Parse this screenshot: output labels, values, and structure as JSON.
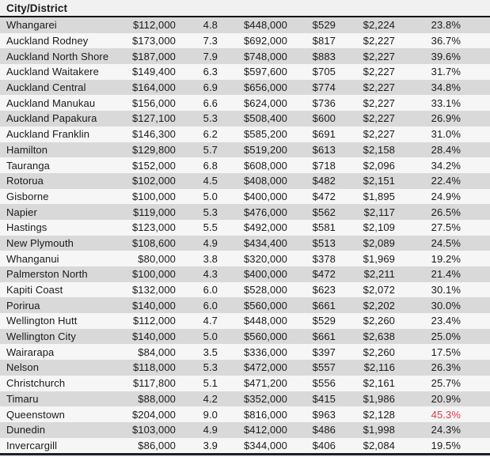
{
  "header": {
    "title": "City/District"
  },
  "chart_data": {
    "type": "table",
    "columns": [
      "City/District",
      "",
      "",
      "",
      "",
      "",
      ""
    ],
    "rows": [
      [
        "Whangarei",
        "$112,000",
        "4.8",
        "$448,000",
        "$529",
        "$2,224",
        "23.8%"
      ],
      [
        "Auckland Rodney",
        "$173,000",
        "7.3",
        "$692,000",
        "$817",
        "$2,227",
        "36.7%"
      ],
      [
        "Auckland North Shore",
        "$187,000",
        "7.9",
        "$748,000",
        "$883",
        "$2,227",
        "39.6%"
      ],
      [
        "Auckland Waitakere",
        "$149,400",
        "6.3",
        "$597,600",
        "$705",
        "$2,227",
        "31.7%"
      ],
      [
        "Auckland Central",
        "$164,000",
        "6.9",
        "$656,000",
        "$774",
        "$2,227",
        "34.8%"
      ],
      [
        "Auckland Manukau",
        "$156,000",
        "6.6",
        "$624,000",
        "$736",
        "$2,227",
        "33.1%"
      ],
      [
        "Auckland Papakura",
        "$127,100",
        "5.3",
        "$508,400",
        "$600",
        "$2,227",
        "26.9%"
      ],
      [
        "Auckland Franklin",
        "$146,300",
        "6.2",
        "$585,200",
        "$691",
        "$2,227",
        "31.0%"
      ],
      [
        "Hamilton",
        "$129,800",
        "5.7",
        "$519,200",
        "$613",
        "$2,158",
        "28.4%"
      ],
      [
        "Tauranga",
        "$152,000",
        "6.8",
        "$608,000",
        "$718",
        "$2,096",
        "34.2%"
      ],
      [
        "Rotorua",
        "$102,000",
        "4.5",
        "$408,000",
        "$482",
        "$2,151",
        "22.4%"
      ],
      [
        "Gisborne",
        "$100,000",
        "5.0",
        "$400,000",
        "$472",
        "$1,895",
        "24.9%"
      ],
      [
        "Napier",
        "$119,000",
        "5.3",
        "$476,000",
        "$562",
        "$2,117",
        "26.5%"
      ],
      [
        "Hastings",
        "$123,000",
        "5.5",
        "$492,000",
        "$581",
        "$2,109",
        "27.5%"
      ],
      [
        "New Plymouth",
        "$108,600",
        "4.9",
        "$434,400",
        "$513",
        "$2,089",
        "24.5%"
      ],
      [
        "Whanganui",
        "$80,000",
        "3.8",
        "$320,000",
        "$378",
        "$1,969",
        "19.2%"
      ],
      [
        "Palmerston North",
        "$100,000",
        "4.3",
        "$400,000",
        "$472",
        "$2,211",
        "21.4%"
      ],
      [
        "Kapiti Coast",
        "$132,000",
        "6.0",
        "$528,000",
        "$623",
        "$2,072",
        "30.1%"
      ],
      [
        "Porirua",
        "$140,000",
        "6.0",
        "$560,000",
        "$661",
        "$2,202",
        "30.0%"
      ],
      [
        "Wellington Hutt",
        "$112,000",
        "4.7",
        "$448,000",
        "$529",
        "$2,260",
        "23.4%"
      ],
      [
        "Wellington City",
        "$140,000",
        "5.0",
        "$560,000",
        "$661",
        "$2,638",
        "25.0%"
      ],
      [
        "Wairarapa",
        "$84,000",
        "3.5",
        "$336,000",
        "$397",
        "$2,260",
        "17.5%"
      ],
      [
        "Nelson",
        "$118,000",
        "5.3",
        "$472,000",
        "$557",
        "$2,116",
        "26.3%"
      ],
      [
        "Christchurch",
        "$117,800",
        "5.1",
        "$471,200",
        "$556",
        "$2,161",
        "25.7%"
      ],
      [
        "Timaru",
        "$88,000",
        "4.2",
        "$352,000",
        "$415",
        "$1,986",
        "20.9%"
      ],
      [
        "Queenstown",
        "$204,000",
        "9.0",
        "$816,000",
        "$963",
        "$2,128",
        "45.3%"
      ],
      [
        "Dunedin",
        "$103,000",
        "4.9",
        "$412,000",
        "$486",
        "$1,998",
        "24.3%"
      ],
      [
        "Invercargill",
        "$86,000",
        "3.9",
        "$344,000",
        "$406",
        "$2,084",
        "19.5%"
      ]
    ],
    "alert": {
      "row_index": 25,
      "col_index": 6,
      "color": "#e03a40"
    },
    "layout": {
      "striped": true,
      "header_underline": true
    }
  },
  "colors": {
    "row_odd": "#d9d9d9",
    "row_even": "#f6f6f7",
    "header_bg": "#f1f1f1",
    "header_rule": "#141414",
    "text": "#1a1a1a",
    "alert_red": "#e03a40",
    "bottom_bar": "#1b202a"
  }
}
